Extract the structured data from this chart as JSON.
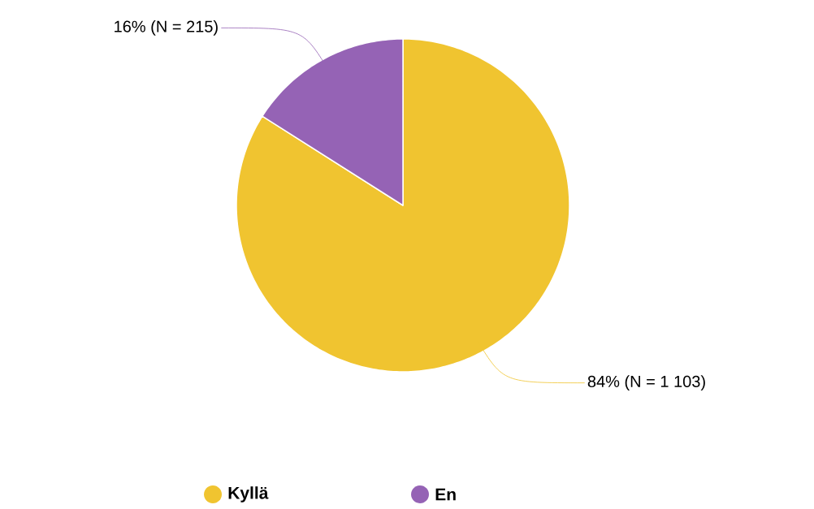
{
  "chart_data": {
    "type": "pie",
    "categories": [
      "Kyllä",
      "En"
    ],
    "values": [
      84,
      16
    ],
    "colors": [
      "#f0c430",
      "#9563b5"
    ],
    "value_labels": [
      "84% (N = 1 103)",
      "16% (N = 215)"
    ],
    "legend": "bottom"
  }
}
